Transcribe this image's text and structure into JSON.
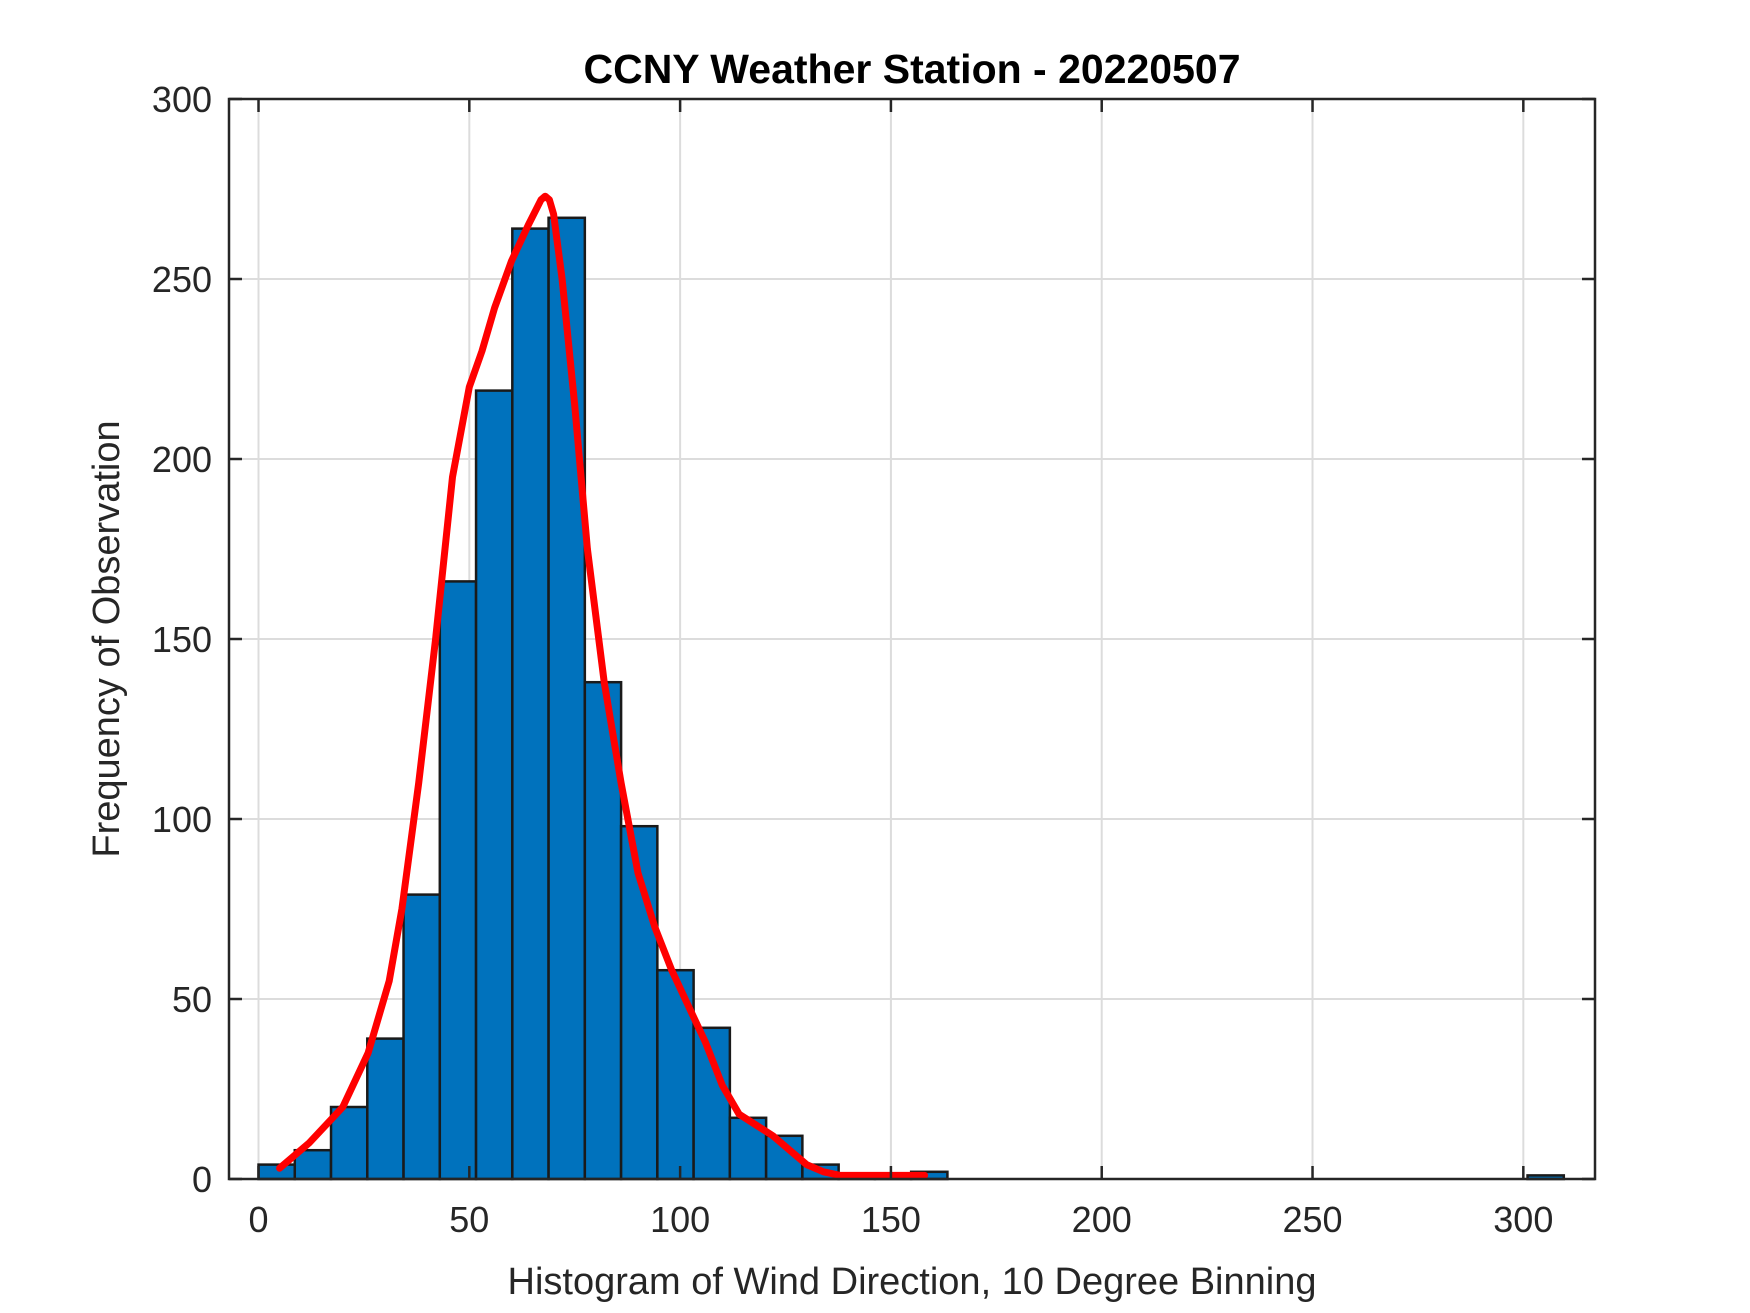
{
  "chart_data": {
    "type": "bar",
    "title": "CCNY Weather Station - 20220507",
    "xlabel": "Histogram of Wind Direction, 10 Degree Binning",
    "ylabel": "Frequency of Observation",
    "xlim": [
      -7,
      317
    ],
    "ylim": [
      0,
      300
    ],
    "xticks": [
      0,
      50,
      100,
      150,
      200,
      250,
      300
    ],
    "yticks": [
      0,
      50,
      100,
      150,
      200,
      250,
      300
    ],
    "grid": true,
    "bin_width": 8.6,
    "bar_color": "#0072BD",
    "line_color": "#FF0000",
    "bins": [
      {
        "x": 4.3,
        "value": 4
      },
      {
        "x": 12.9,
        "value": 8
      },
      {
        "x": 21.5,
        "value": 20
      },
      {
        "x": 30.1,
        "value": 39
      },
      {
        "x": 38.7,
        "value": 79
      },
      {
        "x": 47.3,
        "value": 166
      },
      {
        "x": 55.9,
        "value": 219
      },
      {
        "x": 64.5,
        "value": 264
      },
      {
        "x": 73.1,
        "value": 267
      },
      {
        "x": 81.7,
        "value": 138
      },
      {
        "x": 90.3,
        "value": 98
      },
      {
        "x": 98.9,
        "value": 58
      },
      {
        "x": 107.5,
        "value": 42
      },
      {
        "x": 116.1,
        "value": 17
      },
      {
        "x": 124.7,
        "value": 12
      },
      {
        "x": 133.3,
        "value": 4
      },
      {
        "x": 141.9,
        "value": 1
      },
      {
        "x": 150.5,
        "value": 1
      },
      {
        "x": 159.1,
        "value": 2
      },
      {
        "x": 305.3,
        "value": 1
      }
    ],
    "fit_line": {
      "x": [
        5,
        12,
        20,
        26,
        31,
        34,
        38,
        42,
        46,
        50,
        53,
        56,
        60,
        64,
        67,
        68,
        69,
        70,
        72,
        75,
        78,
        82,
        86,
        90,
        94,
        98,
        102,
        106,
        110,
        114,
        118,
        122,
        126,
        130,
        134,
        138,
        142,
        150,
        158
      ],
      "y": [
        3,
        10,
        20,
        35,
        55,
        75,
        110,
        150,
        195,
        220,
        230,
        242,
        255,
        265,
        272,
        273,
        272,
        268,
        250,
        215,
        175,
        138,
        110,
        85,
        70,
        58,
        48,
        38,
        26,
        18,
        15,
        12,
        8,
        4,
        2,
        1,
        1,
        1,
        1
      ]
    }
  }
}
